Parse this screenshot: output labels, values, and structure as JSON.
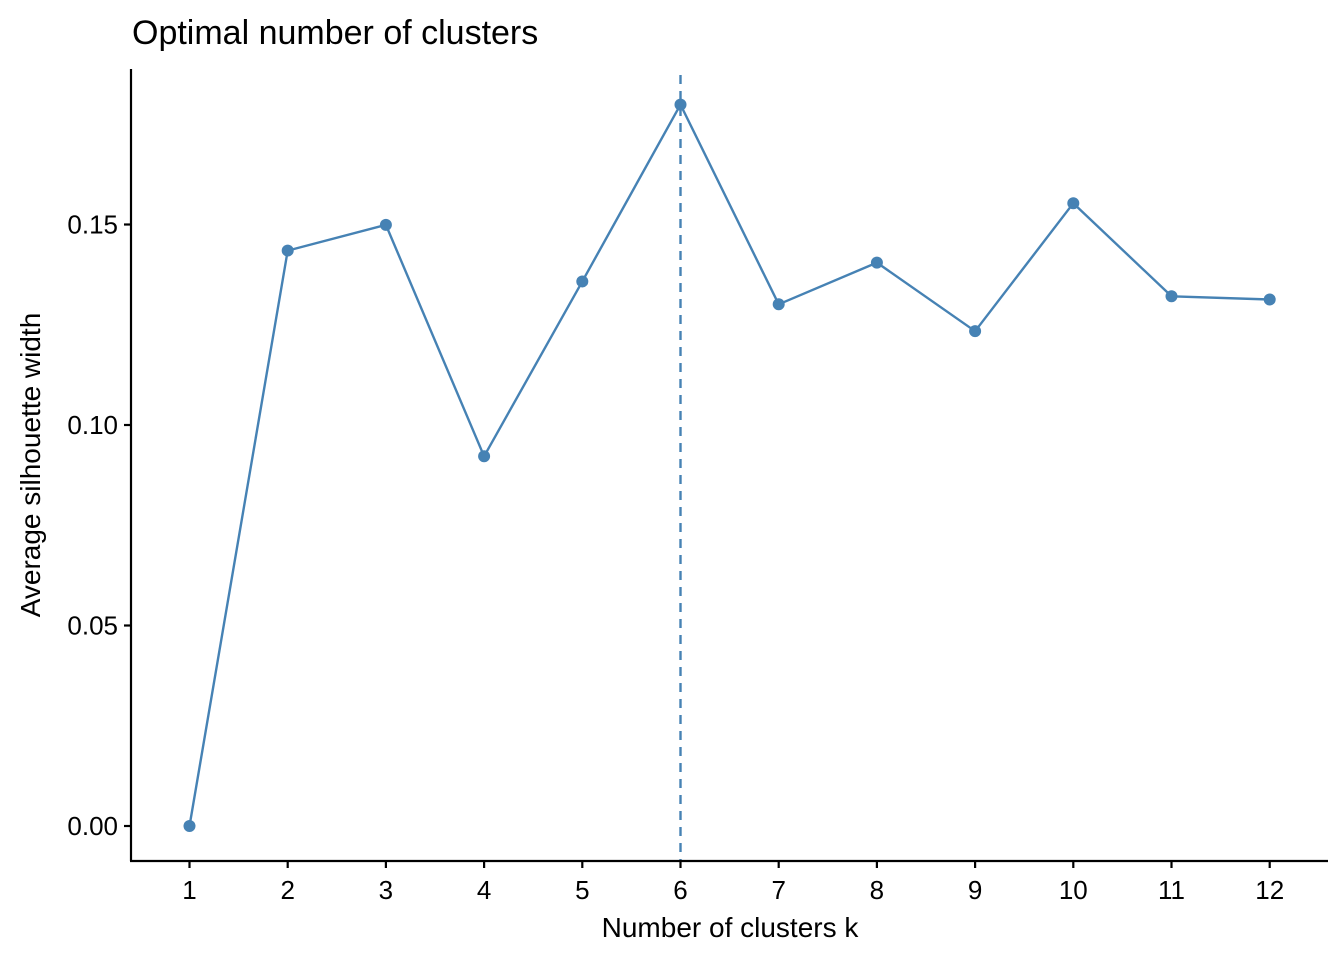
{
  "chart_data": {
    "type": "line",
    "title": "Optimal number of clusters",
    "xlabel": "Number of clusters k",
    "ylabel": "Average silhouette width",
    "categories": [
      "1",
      "2",
      "3",
      "4",
      "5",
      "6",
      "7",
      "8",
      "9",
      "10",
      "11",
      "12"
    ],
    "series": [
      {
        "name": "Average silhouette width",
        "values": [
          0.0,
          0.1435,
          0.1499,
          0.0922,
          0.1358,
          0.1799,
          0.1301,
          0.1405,
          0.1234,
          0.1553,
          0.1321,
          0.1313
        ],
        "color": "#4682B4"
      }
    ],
    "yticks": [
      0.0,
      0.05,
      0.1,
      0.15
    ],
    "ytick_labels": [
      "0.00",
      "0.05",
      "0.10",
      "0.15"
    ],
    "ylim": [
      -0.0087,
      0.1886
    ],
    "optimal_k": 6,
    "optimal_line_style": "dashed",
    "grid": false,
    "legend": "none"
  }
}
